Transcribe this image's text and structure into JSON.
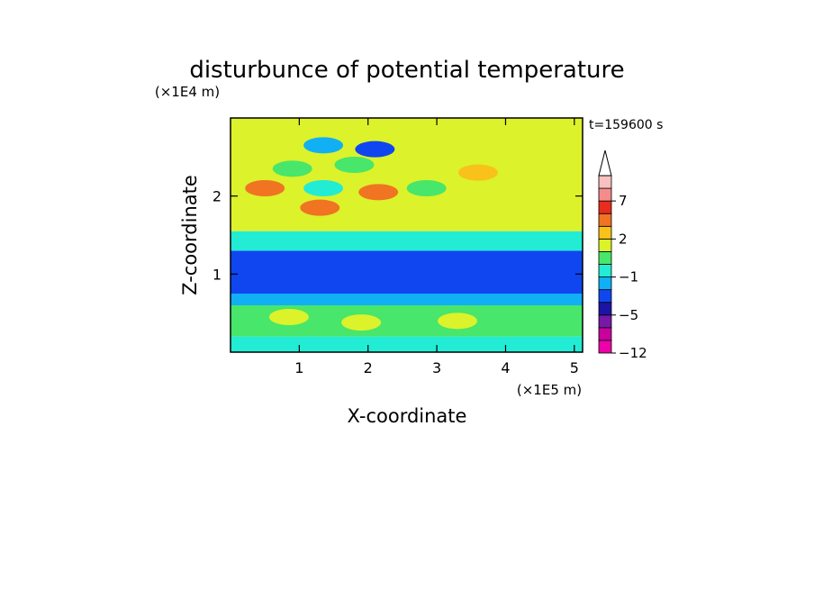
{
  "chart_data": {
    "type": "heatmap",
    "title": "disturbunce of potential temperature",
    "xlabel": "X-coordinate",
    "ylabel": "Z-coordinate",
    "x_unit": "(×1E5 m)",
    "y_unit": "(×1E4 m)",
    "time_label": "t=159600 s",
    "xlim": [
      0,
      5.12
    ],
    "ylim": [
      0,
      3.0
    ],
    "x_ticks": [
      "1",
      "2",
      "3",
      "4",
      "5"
    ],
    "y_ticks": [
      "1",
      "2"
    ],
    "colorbar": {
      "labels": [
        {
          "value": 7,
          "text": "7"
        },
        {
          "value": 2,
          "text": "2"
        },
        {
          "value": -1,
          "text": "−1"
        },
        {
          "value": -5,
          "text": "−5"
        },
        {
          "value": -12,
          "text": "−12"
        }
      ],
      "colors": [
        "#f000a8",
        "#c8009e",
        "#7818a8",
        "#1c14a6",
        "#1046f0",
        "#11b0f4",
        "#22ecd4",
        "#48e66a",
        "#dcf22a",
        "#f8c21a",
        "#f07422",
        "#e82c1e",
        "#f48c8c",
        "#f8c0c0"
      ],
      "extend": "max"
    },
    "layers": [
      {
        "z": [
          0.0,
          0.2
        ],
        "level": 6
      },
      {
        "z": [
          0.2,
          0.6
        ],
        "level": 7
      },
      {
        "z": [
          0.6,
          0.75
        ],
        "level": 5
      },
      {
        "z": [
          0.75,
          1.3
        ],
        "level": 4
      },
      {
        "z": [
          1.3,
          1.55
        ],
        "level": 6
      },
      {
        "z": [
          1.55,
          3.0
        ],
        "level": 8
      }
    ],
    "features": [
      {
        "x": 0.5,
        "z": 2.1,
        "level": 10
      },
      {
        "x": 1.3,
        "z": 1.85,
        "level": 10
      },
      {
        "x": 2.15,
        "z": 2.05,
        "level": 10
      },
      {
        "x": 3.6,
        "z": 2.3,
        "level": 9
      },
      {
        "x": 2.1,
        "z": 2.6,
        "level": 4
      },
      {
        "x": 1.35,
        "z": 2.65,
        "level": 5
      },
      {
        "x": 1.35,
        "z": 2.1,
        "level": 6
      },
      {
        "x": 0.9,
        "z": 2.35,
        "level": 7
      },
      {
        "x": 1.8,
        "z": 2.4,
        "level": 7
      },
      {
        "x": 2.85,
        "z": 2.1,
        "level": 7
      },
      {
        "x": 0.85,
        "z": 0.45,
        "level": 8
      },
      {
        "x": 1.9,
        "z": 0.38,
        "level": 8
      },
      {
        "x": 3.3,
        "z": 0.4,
        "level": 8
      }
    ]
  }
}
